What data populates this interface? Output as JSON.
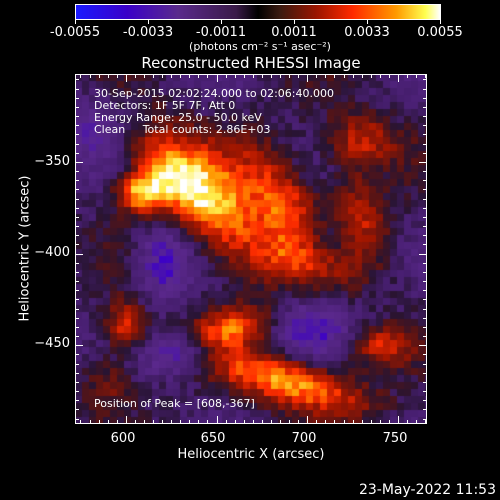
{
  "colorbar": {
    "ticks": [
      "-0.0055",
      "-0.0033",
      "-0.0011",
      "0.0011",
      "0.0033",
      "0.0055"
    ],
    "units": "(photons cm⁻² s⁻¹ asec⁻²)"
  },
  "info": {
    "line1": "30-Sep-2015 02:02:24.000 to 02:06:40.000",
    "line2": "Detectors: 1F 5F 7F, Att 0",
    "line3": "Energy Range: 25.0 - 50.0 keV",
    "line4": "Clean     Total counts: 2.86E+03",
    "peak": "Position of Peak = [608,-367]"
  },
  "footer": {
    "timestamp": "23-May-2022 11:53"
  },
  "colors": {
    "background": "#000000",
    "axis": "#ffffff"
  },
  "chart_data": {
    "type": "heatmap",
    "title": "Reconstructed RHESSI Image",
    "xlabel": "Heliocentric X (arcsec)",
    "ylabel": "Heliocentric Y (arcsec)",
    "xlim": [
      572,
      766
    ],
    "ylim": [
      -493,
      -302
    ],
    "xticks": [
      600,
      650,
      700,
      750
    ],
    "yticks": [
      -350,
      -400,
      -450
    ],
    "xtick_labels": [
      "600",
      "650",
      "700",
      "750"
    ],
    "ytick_labels": [
      "−350",
      "−400",
      "−450"
    ],
    "value_range": [
      -0.0055,
      0.0055
    ],
    "sources": [
      {
        "x": 608,
        "y": -367,
        "sx": 10,
        "sy": 8,
        "amp": 0.005,
        "rot": 0
      },
      {
        "x": 648,
        "y": -372,
        "sx": 14,
        "sy": 30,
        "amp": 0.005,
        "rot": 35
      },
      {
        "x": 690,
        "y": -378,
        "sx": 12,
        "sy": 28,
        "amp": 0.0042,
        "rot": 30
      },
      {
        "x": 620,
        "y": -355,
        "sx": 10,
        "sy": 18,
        "amp": 0.003,
        "rot": 40
      },
      {
        "x": 730,
        "y": -338,
        "sx": 14,
        "sy": 10,
        "amp": 0.003,
        "rot": 0
      },
      {
        "x": 600,
        "y": -440,
        "sx": 8,
        "sy": 10,
        "amp": 0.0038,
        "rot": 0
      },
      {
        "x": 660,
        "y": -440,
        "sx": 16,
        "sy": 8,
        "amp": 0.0038,
        "rot": 10
      },
      {
        "x": 700,
        "y": -405,
        "sx": 18,
        "sy": 9,
        "amp": 0.003,
        "rot": -10
      },
      {
        "x": 730,
        "y": -380,
        "sx": 10,
        "sy": 20,
        "amp": 0.0028,
        "rot": 20
      },
      {
        "x": 690,
        "y": -470,
        "sx": 30,
        "sy": 9,
        "amp": 0.005,
        "rot": -15
      },
      {
        "x": 740,
        "y": -450,
        "sx": 12,
        "sy": 8,
        "amp": 0.003,
        "rot": 0
      },
      {
        "x": 590,
        "y": -470,
        "sx": 10,
        "sy": 10,
        "amp": 0.002,
        "rot": 0
      },
      {
        "x": 620,
        "y": -405,
        "sx": 10,
        "sy": 14,
        "amp": -0.003,
        "rot": 0
      },
      {
        "x": 705,
        "y": -400,
        "sx": 12,
        "sy": 14,
        "amp": -0.0035,
        "rot": 0
      },
      {
        "x": 630,
        "y": -455,
        "sx": 14,
        "sy": 8,
        "amp": -0.003,
        "rot": 0
      },
      {
        "x": 700,
        "y": -440,
        "sx": 18,
        "sy": 10,
        "amp": -0.0025,
        "rot": 0
      },
      {
        "x": 580,
        "y": -330,
        "sx": 14,
        "sy": 14,
        "amp": -0.0018,
        "rot": 0
      }
    ]
  }
}
